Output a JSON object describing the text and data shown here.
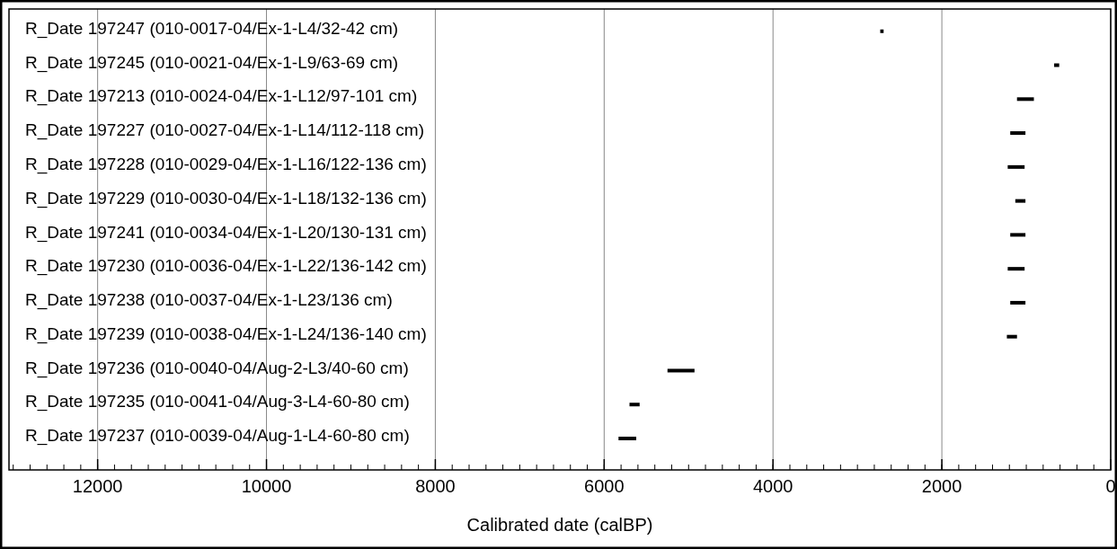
{
  "chart_data": {
    "type": "bar",
    "orientation": "horizontal",
    "xlabel": "Calibrated date (calBP)",
    "categories": [
      "R_Date 197247 (010-0017-04/Ex-1-L4/32-42 cm)",
      "R_Date 197245 (010-0021-04/Ex-1-L9/63-69 cm)",
      "R_Date 197213 (010-0024-04/Ex-1-L12/97-101 cm)",
      "R_Date 197227 (010-0027-04/Ex-1-L14/112-118 cm)",
      "R_Date 197228 (010-0029-04/Ex-1-L16/122-136 cm)",
      "R_Date 197229 (010-0030-04/Ex-1-L18/132-136 cm)",
      "R_Date 197241 (010-0034-04/Ex-1-L20/130-131 cm)",
      "R_Date 197230 (010-0036-04/Ex-1-L22/136-142 cm)",
      "R_Date 197238 (010-0037-04/Ex-1-L23/136 cm)",
      "R_Date 197239 (010-0038-04/Ex-1-L24/136-140 cm)",
      "R_Date 197236 (010-0040-04/Aug-2-L3/40-60 cm)",
      "R_Date 197235 (010-0041-04/Aug-3-L4-60-80 cm)",
      "R_Date 197237 (010-0039-04/Aug-1-L4-60-80 cm)"
    ],
    "base": [
      2690,
      610,
      910,
      1010,
      1020,
      1010,
      1010,
      1020,
      1010,
      1110,
      4930,
      5580,
      5620
    ],
    "values": [
      40,
      60,
      200,
      180,
      200,
      120,
      180,
      200,
      180,
      120,
      320,
      120,
      210
    ],
    "color": "#000000",
    "xlim": [
      13050,
      0
    ],
    "xticks": [
      12000,
      10000,
      8000,
      6000,
      4000,
      2000,
      0
    ],
    "grid": "x"
  }
}
